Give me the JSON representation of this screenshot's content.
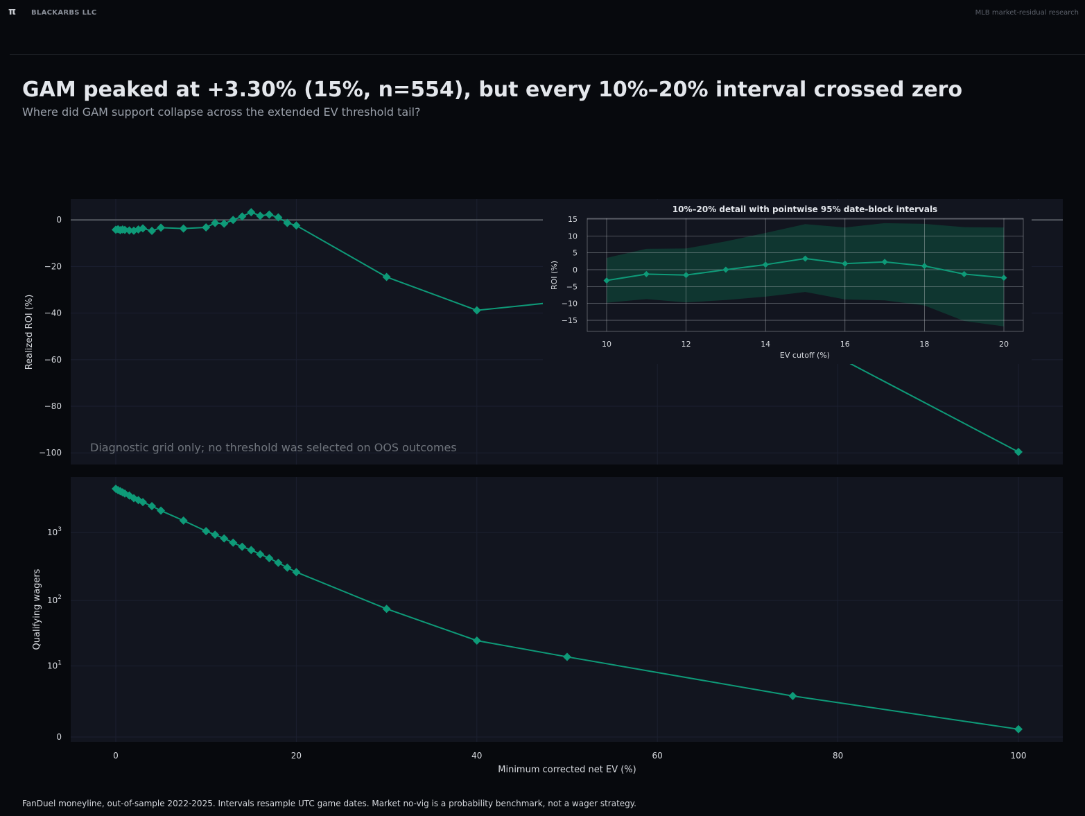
{
  "header": {
    "logo_glyph": "π",
    "brand": "BLACKARBS LLC",
    "context": "MLB market-residual research"
  },
  "title": "GAM peaked at +3.30% (15%, n=554), but every 10%–20% interval crossed zero",
  "subtitle": "Where did GAM support collapse across the extended EV threshold tail?",
  "footer": "FanDuel moneyline, out-of-sample 2022-2025. Intervals resample UTC game dates. Market no-vig is a probability benchmark, not a wager strategy.",
  "colors": {
    "background": "#07090d",
    "panel": "#12151f",
    "series": "#0e9a78",
    "band": "#0f3a32",
    "zero_line": "#555a61"
  },
  "chart_data": [
    {
      "type": "line",
      "ylabel": "Realized ROI (%)",
      "xlim": [
        -5,
        105
      ],
      "ylim": [
        -105,
        9
      ],
      "yticks": [
        0,
        -20,
        -40,
        -60,
        -80,
        -100
      ],
      "yticklabels": [
        "0",
        "−20",
        "−40",
        "−60",
        "−80",
        "−100"
      ],
      "zero_line": true,
      "grid": true,
      "annotation": "Diagnostic grid only; no threshold was selected on OOS outcomes",
      "x": [
        0,
        0.25,
        0.5,
        0.75,
        1,
        1.5,
        2,
        2.5,
        3,
        4,
        5,
        7.5,
        10,
        11,
        12,
        13,
        14,
        15,
        16,
        17,
        18,
        19,
        20,
        30,
        40,
        50,
        75,
        100
      ],
      "values": [
        -4.2,
        -4.0,
        -4.4,
        -4.1,
        -4.3,
        -4.5,
        -4.6,
        -4.1,
        -3.6,
        -4.7,
        -3.3,
        -3.7,
        -3.2,
        -1.3,
        -1.6,
        0.0,
        1.5,
        3.3,
        1.8,
        2.3,
        1.1,
        -1.3,
        -2.4,
        -24.5,
        -38.8,
        -34.8,
        -48.7,
        -99.6
      ],
      "marker": "diamond"
    },
    {
      "type": "line",
      "ylabel": "Qualifying wagers",
      "xlabel": "Minimum corrected net EV (%)",
      "scale": "symlog",
      "xlim": [
        -5,
        105
      ],
      "xticks": [
        0,
        20,
        40,
        60,
        80,
        100
      ],
      "yticks": [
        0,
        10,
        100,
        1000
      ],
      "yticklabels": [
        "0",
        "10^1",
        "10^2",
        "10^3"
      ],
      "grid": true,
      "x": [
        0,
        0.25,
        0.5,
        0.75,
        1,
        1.5,
        2,
        2.5,
        3,
        4,
        5,
        7.5,
        10,
        11,
        12,
        13,
        14,
        15,
        16,
        17,
        18,
        19,
        20,
        30,
        40,
        50,
        75,
        100
      ],
      "values": [
        4400,
        4200,
        4050,
        3900,
        3750,
        3500,
        3200,
        3000,
        2800,
        2450,
        2100,
        1500,
        1050,
        930,
        820,
        710,
        620,
        554,
        480,
        420,
        360,
        305,
        262,
        75,
        25,
        14,
        3,
        0.3
      ],
      "marker": "diamond"
    },
    {
      "type": "area",
      "title": "10%–20% detail with pointwise 95% date-block intervals",
      "xlabel": "EV cutoff (%)",
      "ylabel": "ROI (%)",
      "xlim": [
        9.5,
        20.5
      ],
      "ylim": [
        -18,
        15
      ],
      "xticks": [
        10,
        12,
        14,
        16,
        18,
        20
      ],
      "yticks": [
        15,
        10,
        5,
        0,
        -5,
        -10,
        -15
      ],
      "yticklabels": [
        "15",
        "10",
        "5",
        "0",
        "−5",
        "−10",
        "−15"
      ],
      "grid": true,
      "x": [
        10,
        11,
        12,
        13,
        14,
        15,
        16,
        17,
        18,
        19,
        20
      ],
      "values": [
        -3.2,
        -1.3,
        -1.6,
        0.0,
        1.5,
        3.3,
        1.8,
        2.3,
        1.1,
        -1.3,
        -2.4
      ],
      "ci_upper": [
        3.5,
        6.2,
        6.3,
        8.4,
        10.9,
        13.5,
        12.5,
        13.8,
        13.6,
        12.6,
        12.5
      ],
      "ci_lower": [
        -9.8,
        -8.7,
        -9.7,
        -9.0,
        -8.0,
        -6.6,
        -8.8,
        -9.1,
        -10.6,
        -15.2,
        -16.8
      ],
      "marker": "diamond"
    }
  ]
}
